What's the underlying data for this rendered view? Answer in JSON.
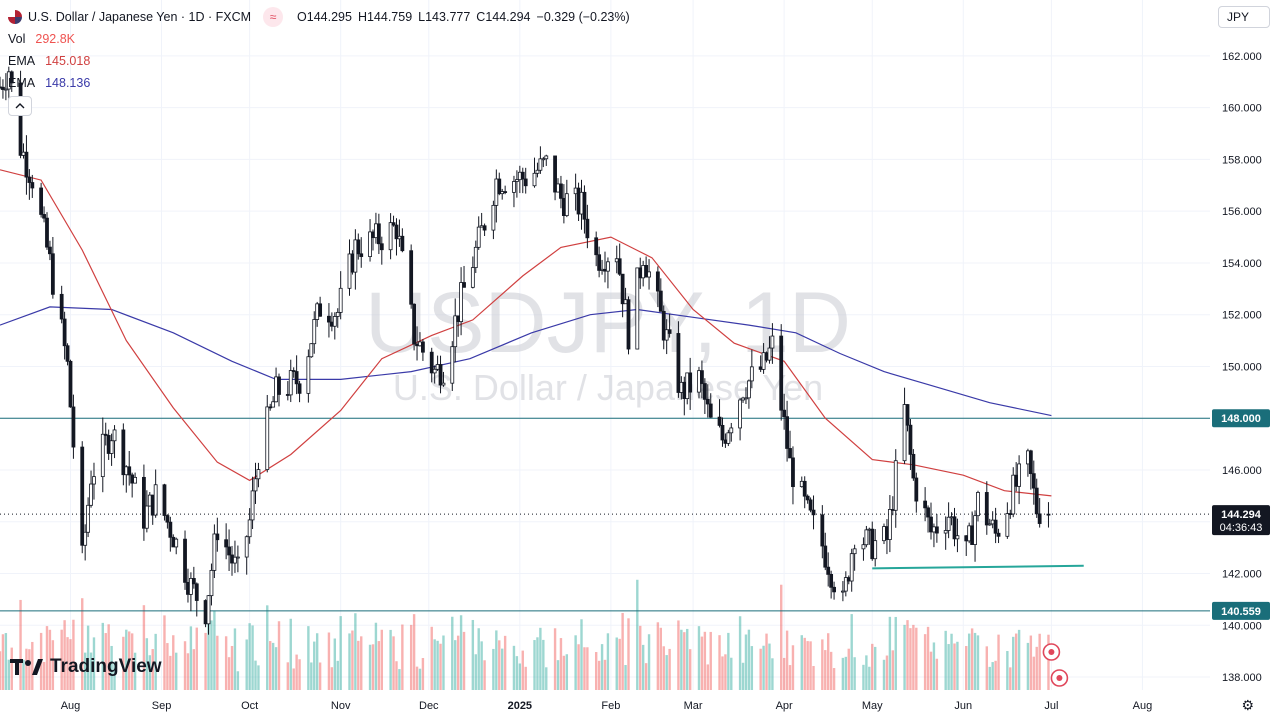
{
  "legend": {
    "symbol_title": "U.S. Dollar / Japanese Yen · 1D · FXCM",
    "indicator_badge": "≈",
    "ohlc": [
      {
        "key": "O",
        "value": "144.295"
      },
      {
        "key": "H",
        "value": "144.759"
      },
      {
        "key": "L",
        "value": "143.777"
      },
      {
        "key": "C",
        "value": "144.294"
      }
    ],
    "change": "−0.329 (−0.23%)",
    "vol_label": "Vol",
    "vol_value": "292.8K",
    "ema50_label": "EMA",
    "ema50_value": "145.018",
    "ema200_label": "EMA",
    "ema200_value": "148.136",
    "collapse_icon": "chevron-up-icon"
  },
  "currency_selector": "JPY",
  "watermark": {
    "ticker": "USDJPY, 1D",
    "name": "U.S. Dollar / Japanese Yen"
  },
  "brand": "TradingView",
  "countdown": "04:36:43",
  "colors": {
    "up": "#26a69a",
    "down": "#ef5350",
    "ema50": "#d04040",
    "ema200": "#3a3aa8",
    "level": "#1a6e7a",
    "trendline": "#26a69a"
  },
  "chart_data": {
    "type": "candlestick",
    "symbol": "USDJPY",
    "timeframe": "1D",
    "ylim": [
      137.5,
      163.0
    ],
    "y_ticks": [
      "138.000",
      "140.000",
      "142.000",
      "144.000",
      "146.000",
      "148.000",
      "150.000",
      "152.000",
      "154.000",
      "156.000",
      "158.000",
      "160.000",
      "162.000"
    ],
    "x_ticks": [
      {
        "label": "Aug",
        "date": "2024-08-01"
      },
      {
        "label": "Sep",
        "date": "2024-09-01"
      },
      {
        "label": "Oct",
        "date": "2024-10-01"
      },
      {
        "label": "Nov",
        "date": "2024-11-01"
      },
      {
        "label": "Dec",
        "date": "2024-12-01"
      },
      {
        "label": "2025",
        "date": "2025-01-01"
      },
      {
        "label": "Feb",
        "date": "2025-02-01"
      },
      {
        "label": "Mar",
        "date": "2025-03-01"
      },
      {
        "label": "Apr",
        "date": "2025-04-01"
      },
      {
        "label": "May",
        "date": "2025-05-01"
      },
      {
        "label": "Jun",
        "date": "2025-06-01"
      },
      {
        "label": "Jul",
        "date": "2025-07-01"
      },
      {
        "label": "Aug",
        "date": "2025-08-01"
      }
    ],
    "x_range": [
      "2024-07-08",
      "2025-08-24"
    ],
    "last_price": {
      "value": 144.294,
      "label": "144.294"
    },
    "horizontal_levels": [
      {
        "value": 148.0,
        "label": "148.000"
      },
      {
        "value": 140.559,
        "label": "140.559"
      }
    ],
    "trendline": {
      "start": {
        "date": "2025-05-01",
        "value": 142.2
      },
      "end": {
        "date": "2025-07-12",
        "value": 142.3
      }
    },
    "close_path": [
      [
        "2024-07-08",
        160.8
      ],
      [
        "2024-07-11",
        161.5
      ],
      [
        "2024-07-15",
        158.5
      ],
      [
        "2024-07-19",
        157.3
      ],
      [
        "2024-07-25",
        154.0
      ],
      [
        "2024-07-31",
        150.0
      ],
      [
        "2024-08-05",
        142.5
      ],
      [
        "2024-08-08",
        145.8
      ],
      [
        "2024-08-15",
        147.5
      ],
      [
        "2024-08-20",
        146.2
      ],
      [
        "2024-08-26",
        144.2
      ],
      [
        "2024-08-30",
        145.0
      ],
      [
        "2024-09-05",
        143.5
      ],
      [
        "2024-09-11",
        141.5
      ],
      [
        "2024-09-16",
        140.6
      ],
      [
        "2024-09-20",
        143.8
      ],
      [
        "2024-09-27",
        142.0
      ],
      [
        "2024-10-01",
        144.0
      ],
      [
        "2024-10-04",
        146.6
      ],
      [
        "2024-10-10",
        149.0
      ],
      [
        "2024-10-18",
        149.5
      ],
      [
        "2024-10-25",
        152.3
      ],
      [
        "2024-10-31",
        152.1
      ],
      [
        "2024-11-06",
        154.6
      ],
      [
        "2024-11-15",
        155.0
      ],
      [
        "2024-11-20",
        155.4
      ],
      [
        "2024-11-26",
        151.2
      ],
      [
        "2024-12-03",
        149.8
      ],
      [
        "2024-12-06",
        150.0
      ],
      [
        "2024-12-12",
        152.6
      ],
      [
        "2024-12-18",
        154.8
      ],
      [
        "2024-12-24",
        157.2
      ],
      [
        "2025-01-03",
        157.3
      ],
      [
        "2025-01-10",
        157.8
      ],
      [
        "2025-01-15",
        156.5
      ],
      [
        "2025-01-22",
        156.2
      ],
      [
        "2025-01-27",
        154.2
      ],
      [
        "2025-02-03",
        154.5
      ],
      [
        "2025-02-07",
        151.3
      ],
      [
        "2025-02-12",
        154.4
      ],
      [
        "2025-02-19",
        151.5
      ],
      [
        "2025-02-25",
        149.0
      ],
      [
        "2025-03-03",
        149.5
      ],
      [
        "2025-03-07",
        147.8
      ],
      [
        "2025-03-11",
        147.2
      ],
      [
        "2025-03-18",
        149.2
      ],
      [
        "2025-03-25",
        150.0
      ],
      [
        "2025-03-28",
        150.8
      ],
      [
        "2025-04-03",
        146.2
      ],
      [
        "2025-04-09",
        144.3
      ],
      [
        "2025-04-14",
        143.1
      ],
      [
        "2025-04-21",
        140.8
      ],
      [
        "2025-04-25",
        143.6
      ],
      [
        "2025-04-30",
        143.1
      ],
      [
        "2025-05-06",
        143.3
      ],
      [
        "2025-05-12",
        148.3
      ],
      [
        "2025-05-15",
        145.6
      ],
      [
        "2025-05-21",
        143.6
      ],
      [
        "2025-05-27",
        144.3
      ],
      [
        "2025-06-02",
        142.7
      ],
      [
        "2025-06-06",
        144.8
      ],
      [
        "2025-06-12",
        143.5
      ],
      [
        "2025-06-18",
        145.2
      ],
      [
        "2025-06-23",
        146.2
      ],
      [
        "2025-06-26",
        144.5
      ],
      [
        "2025-06-30",
        144.3
      ]
    ],
    "ema50_path": [
      [
        "2024-07-08",
        157.6
      ],
      [
        "2024-07-22",
        157.2
      ],
      [
        "2024-08-05",
        154.5
      ],
      [
        "2024-08-20",
        151.0
      ],
      [
        "2024-09-05",
        148.4
      ],
      [
        "2024-09-20",
        146.3
      ],
      [
        "2024-10-01",
        145.6
      ],
      [
        "2024-10-15",
        146.6
      ],
      [
        "2024-11-01",
        148.3
      ],
      [
        "2024-11-15",
        150.3
      ],
      [
        "2024-12-02",
        151.2
      ],
      [
        "2024-12-16",
        151.8
      ],
      [
        "2025-01-02",
        153.5
      ],
      [
        "2025-01-15",
        154.6
      ],
      [
        "2025-02-01",
        155.0
      ],
      [
        "2025-02-15",
        154.2
      ],
      [
        "2025-03-01",
        152.2
      ],
      [
        "2025-03-15",
        150.9
      ],
      [
        "2025-04-01",
        150.2
      ],
      [
        "2025-04-15",
        148.0
      ],
      [
        "2025-05-01",
        146.4
      ],
      [
        "2025-05-15",
        146.2
      ],
      [
        "2025-06-01",
        145.8
      ],
      [
        "2025-06-15",
        145.2
      ],
      [
        "2025-07-01",
        145.0
      ]
    ],
    "ema200_path": [
      [
        "2024-07-08",
        151.6
      ],
      [
        "2024-07-25",
        152.3
      ],
      [
        "2024-08-15",
        152.2
      ],
      [
        "2024-09-05",
        151.3
      ],
      [
        "2024-09-25",
        150.2
      ],
      [
        "2024-10-10",
        149.5
      ],
      [
        "2024-11-01",
        149.5
      ],
      [
        "2024-11-25",
        149.8
      ],
      [
        "2024-12-15",
        150.3
      ],
      [
        "2025-01-05",
        151.3
      ],
      [
        "2025-01-25",
        152.0
      ],
      [
        "2025-02-10",
        152.2
      ],
      [
        "2025-03-01",
        151.9
      ],
      [
        "2025-03-20",
        151.6
      ],
      [
        "2025-04-05",
        151.3
      ],
      [
        "2025-04-20",
        150.5
      ],
      [
        "2025-05-05",
        149.8
      ],
      [
        "2025-05-20",
        149.3
      ],
      [
        "2025-06-10",
        148.6
      ],
      [
        "2025-07-01",
        148.1
      ]
    ]
  }
}
